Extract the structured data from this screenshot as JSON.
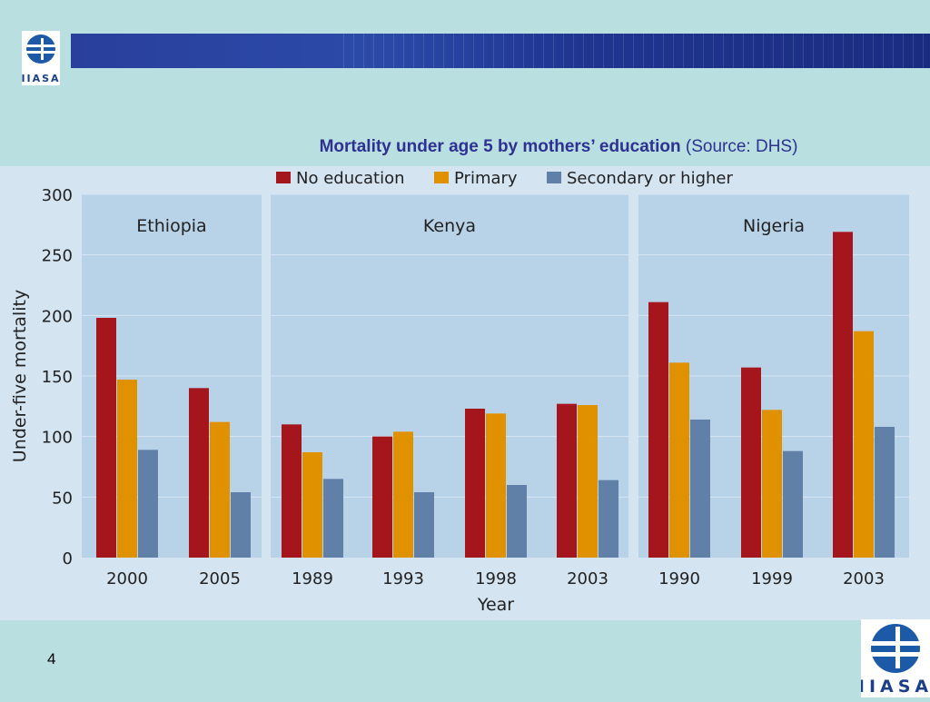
{
  "slide": {
    "title_main": "Mortality under age 5 by mothers’ education",
    "title_source": "(Source: DHS)",
    "page_number": "4",
    "logo_text": "IIASA"
  },
  "colors": {
    "no_education": "#a5161c",
    "primary": "#e09100",
    "secondary": "#6180a7",
    "plot_bg": "#b8d2e8",
    "panel_bg": "#d4e4f1",
    "title": "#2e3192"
  },
  "chart_data": {
    "type": "bar",
    "xlabel": "Year",
    "ylabel": "Under-five mortality",
    "ylim": [
      0,
      300
    ],
    "yticks": [
      0,
      50,
      100,
      150,
      200,
      250,
      300
    ],
    "grid": true,
    "legend_position": "top",
    "series_names": [
      "No education",
      "Primary",
      "Secondary or higher"
    ],
    "panels": [
      {
        "country": "Ethiopia",
        "categories": [
          "2000",
          "2005"
        ],
        "series": [
          {
            "name": "No education",
            "values": [
              198,
              140
            ]
          },
          {
            "name": "Primary",
            "values": [
              147,
              112
            ]
          },
          {
            "name": "Secondary or higher",
            "values": [
              89,
              54
            ]
          }
        ]
      },
      {
        "country": "Kenya",
        "categories": [
          "1989",
          "1993",
          "1998",
          "2003"
        ],
        "series": [
          {
            "name": "No education",
            "values": [
              110,
              100,
              123,
              127
            ]
          },
          {
            "name": "Primary",
            "values": [
              87,
              104,
              119,
              126
            ]
          },
          {
            "name": "Secondary or higher",
            "values": [
              65,
              54,
              60,
              64
            ]
          }
        ]
      },
      {
        "country": "Nigeria",
        "categories": [
          "1990",
          "1999",
          "2003"
        ],
        "series": [
          {
            "name": "No education",
            "values": [
              211,
              157,
              269
            ]
          },
          {
            "name": "Primary",
            "values": [
              161,
              122,
              187
            ]
          },
          {
            "name": "Secondary or higher",
            "values": [
              114,
              88,
              108
            ]
          }
        ]
      }
    ]
  }
}
